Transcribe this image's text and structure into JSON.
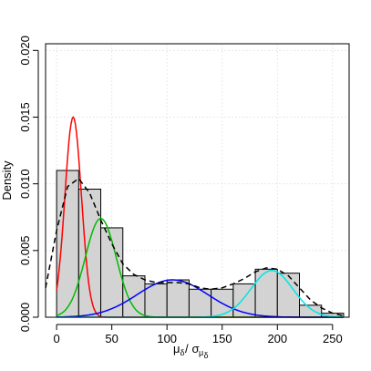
{
  "chart_data": {
    "type": "histogram",
    "ylabel": "Density",
    "xlabel_parts": {
      "num": "μ",
      "num_sub": "δ",
      "slash": "/",
      "den": "σ",
      "den_sub": "μ",
      "den_subsub": "δ"
    },
    "xlim": [
      -10,
      265
    ],
    "ylim": [
      0,
      0.0205
    ],
    "xticks": [
      0,
      50,
      100,
      150,
      200,
      250
    ],
    "yticks": [
      0.0,
      0.005,
      0.01,
      0.015,
      0.02
    ],
    "ytick_labels": [
      "0.000",
      "0.005",
      "0.010",
      "0.015",
      "0.020"
    ],
    "grid": true,
    "bin_edges": [
      0,
      20,
      40,
      60,
      80,
      100,
      120,
      140,
      160,
      180,
      200,
      220,
      240,
      260
    ],
    "bin_density": [
      0.011,
      0.0096,
      0.0067,
      0.0031,
      0.0025,
      0.0028,
      0.0021,
      0.0021,
      0.0025,
      0.0036,
      0.0033,
      0.0009,
      0.0003
    ],
    "bar_fill": "#d3d3d3",
    "components": [
      {
        "color": "#ff0000",
        "mean": 15,
        "sd": 7.5,
        "peak": 0.015
      },
      {
        "color": "#00bb00",
        "mean": 40,
        "sd": 14,
        "peak": 0.0074
      },
      {
        "color": "#0000ff",
        "mean": 105,
        "sd": 32,
        "peak": 0.0028
      },
      {
        "color": "#00e5e5",
        "mean": 195,
        "sd": 19,
        "peak": 0.0035
      }
    ],
    "density_estimate": {
      "style": "dashed",
      "color": "#000000",
      "x": [
        -10,
        0,
        10,
        20,
        30,
        40,
        50,
        60,
        70,
        80,
        90,
        100,
        110,
        120,
        130,
        140,
        150,
        160,
        170,
        180,
        190,
        200,
        210,
        220,
        230,
        240,
        250,
        260
      ],
      "y": [
        0.0022,
        0.0065,
        0.0098,
        0.0104,
        0.0093,
        0.0073,
        0.0055,
        0.004,
        0.0032,
        0.0028,
        0.0026,
        0.0026,
        0.0026,
        0.0025,
        0.0022,
        0.0021,
        0.0022,
        0.0025,
        0.0029,
        0.0034,
        0.0037,
        0.0036,
        0.0031,
        0.0022,
        0.0013,
        0.0007,
        0.0003,
        0.0001
      ]
    }
  }
}
